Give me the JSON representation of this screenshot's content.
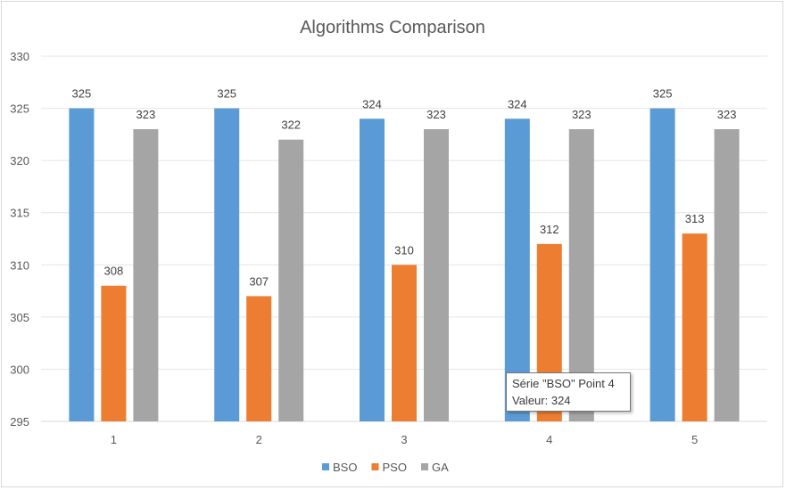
{
  "chart_data": {
    "type": "bar",
    "title": "Algorithms Comparison",
    "xlabel": "",
    "ylabel": "",
    "categories": [
      "1",
      "2",
      "3",
      "4",
      "5"
    ],
    "ylim": [
      295,
      330
    ],
    "yticks": [
      295,
      300,
      305,
      310,
      315,
      320,
      325,
      330
    ],
    "grid": true,
    "legend_position": "bottom",
    "series": [
      {
        "name": "BSO",
        "color": "#5b9bd5",
        "values": [
          325,
          325,
          324,
          324,
          325
        ]
      },
      {
        "name": "PSO",
        "color": "#ed7d31",
        "values": [
          308,
          307,
          310,
          312,
          313
        ]
      },
      {
        "name": "GA",
        "color": "#a5a5a5",
        "values": [
          323,
          322,
          323,
          323,
          323
        ]
      }
    ]
  },
  "tooltip": {
    "line1": "Série \"BSO\" Point 4",
    "line2": "Valeur: 324"
  }
}
